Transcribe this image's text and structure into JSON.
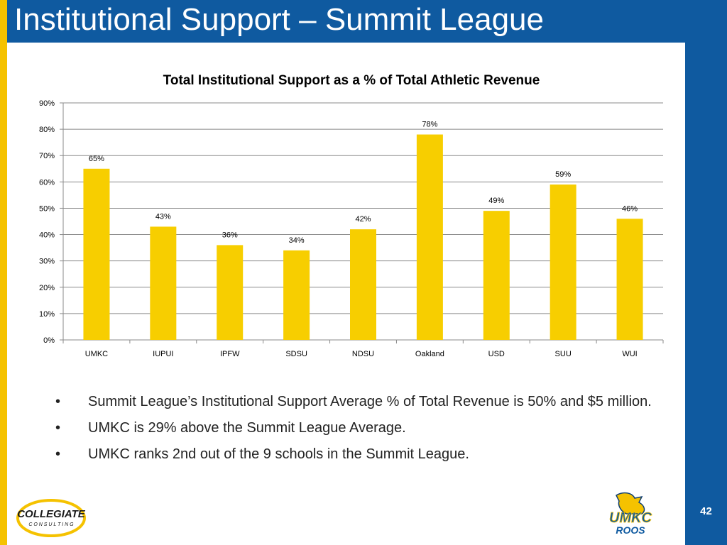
{
  "slide": {
    "title": "Institutional Support – Summit League",
    "page_number": "42",
    "colors": {
      "title_bar": "#0f5aa0",
      "accent_stripe": "#f5c200",
      "bar_fill": "#f7ce00"
    }
  },
  "chart_data": {
    "type": "bar",
    "title": "Total Institutional Support as a % of Total Athletic Revenue",
    "categories": [
      "UMKC",
      "IUPUI",
      "IPFW",
      "SDSU",
      "NDSU",
      "Oakland",
      "USD",
      "SUU",
      "WUI"
    ],
    "values": [
      65,
      43,
      36,
      34,
      42,
      78,
      49,
      59,
      46
    ],
    "data_labels": [
      "65%",
      "43%",
      "36%",
      "34%",
      "42%",
      "78%",
      "49%",
      "59%",
      "46%"
    ],
    "ylim": [
      0,
      90
    ],
    "yticks": [
      0,
      10,
      20,
      30,
      40,
      50,
      60,
      70,
      80,
      90
    ],
    "ytick_labels": [
      "0%",
      "10%",
      "20%",
      "30%",
      "40%",
      "50%",
      "60%",
      "70%",
      "80%",
      "90%"
    ],
    "xlabel": "",
    "ylabel": "",
    "grid": true,
    "legend": "none"
  },
  "bullets": [
    {
      "marker": "•",
      "text": "Summit League’s Institutional Support Average % of Total Revenue is 50% and $5 million."
    },
    {
      "marker": "•",
      "text": "UMKC is 29% above the Summit League Average."
    },
    {
      "marker": "•",
      "text": "UMKC ranks 2nd out of the 9 schools in the Summit League."
    }
  ],
  "logos": {
    "collegiate": {
      "line1": "COLLEGIATE",
      "line2": "C O N S U L T I N G"
    },
    "umkc": {
      "line1": "UMKC",
      "line2": "ROOS"
    }
  }
}
